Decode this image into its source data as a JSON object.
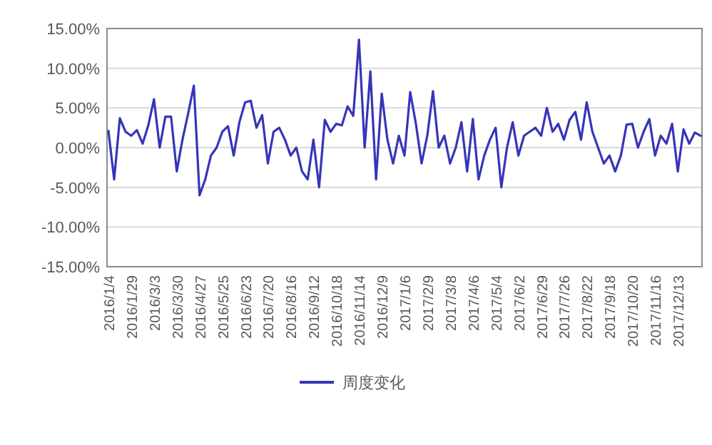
{
  "chart_data": {
    "type": "line",
    "categories": [
      "2016/1/4",
      null,
      null,
      null,
      "2016/1/29",
      null,
      null,
      null,
      "2016/3/3",
      null,
      null,
      null,
      "2016/3/30",
      null,
      null,
      null,
      "2016/4/27",
      null,
      null,
      null,
      "2016/5/25",
      null,
      null,
      null,
      "2016/6/23",
      null,
      null,
      null,
      "2016/7/20",
      null,
      null,
      null,
      "2016/8/16",
      null,
      null,
      null,
      "2016/9/12",
      null,
      null,
      null,
      "2016/10/18",
      null,
      null,
      null,
      "2016/11/14",
      null,
      null,
      null,
      "2016/12/9",
      null,
      null,
      null,
      "2017/1/6",
      null,
      null,
      null,
      "2017/2/9",
      null,
      null,
      null,
      "2017/3/8",
      null,
      null,
      null,
      "2017/4/6",
      null,
      null,
      null,
      "2017/5/4",
      null,
      null,
      null,
      "2017/6/2",
      null,
      null,
      null,
      "2017/6/29",
      null,
      null,
      null,
      "2017/7/26",
      null,
      null,
      null,
      "2017/8/22",
      null,
      null,
      null,
      "2017/9/18",
      null,
      null,
      null,
      "2017/10/20",
      null,
      null,
      null,
      "2017/11/16",
      null,
      null,
      null,
      "2017/12/13",
      null,
      null,
      null,
      null
    ],
    "series": [
      {
        "name": "周度变化",
        "color": "#3535b8",
        "values": [
          2.1,
          -4,
          3.7,
          2.0,
          1.5,
          2.2,
          0.5,
          2.8,
          6.1,
          0,
          3.9,
          3.9,
          -3,
          1,
          4.3,
          7.8,
          -6,
          -4,
          -1,
          0,
          2,
          2.7,
          -1,
          3.2,
          5.7,
          5.9,
          2.5,
          4.1,
          -2,
          2,
          2.5,
          1,
          -1,
          0,
          -3,
          -4,
          1,
          -5,
          3.5,
          2,
          3,
          2.8,
          5.2,
          4,
          13.6,
          0,
          9.6,
          -4,
          6.8,
          1,
          -2,
          1.5,
          -1,
          7,
          3,
          -2,
          1.5,
          7.1,
          0,
          1.5,
          -2,
          0,
          3.2,
          -3,
          3.6,
          -4,
          -1,
          1,
          2.5,
          -5,
          0,
          3.2,
          -1,
          1.5,
          2,
          2.5,
          1.5,
          5,
          2,
          3,
          1,
          3.5,
          4.5,
          1,
          5.7,
          2,
          0,
          -2,
          -1,
          -3,
          -1,
          2.9,
          3,
          0,
          2,
          3.6,
          -1,
          1.5,
          0.5,
          3,
          -3,
          2.3,
          0.5,
          1.9,
          1.5
        ]
      }
    ],
    "ylim": [
      -15,
      15
    ],
    "yticks": [
      {
        "value": -15,
        "label": "-15.00%"
      },
      {
        "value": -10,
        "label": "-10.00%"
      },
      {
        "value": -5,
        "label": "-5.00%"
      },
      {
        "value": 0,
        "label": "0.00%"
      },
      {
        "value": 5,
        "label": "5.00%"
      },
      {
        "value": 10,
        "label": "10.00%"
      },
      {
        "value": 15,
        "label": "15.00%"
      }
    ],
    "grid": "y",
    "legend": "bottom"
  }
}
